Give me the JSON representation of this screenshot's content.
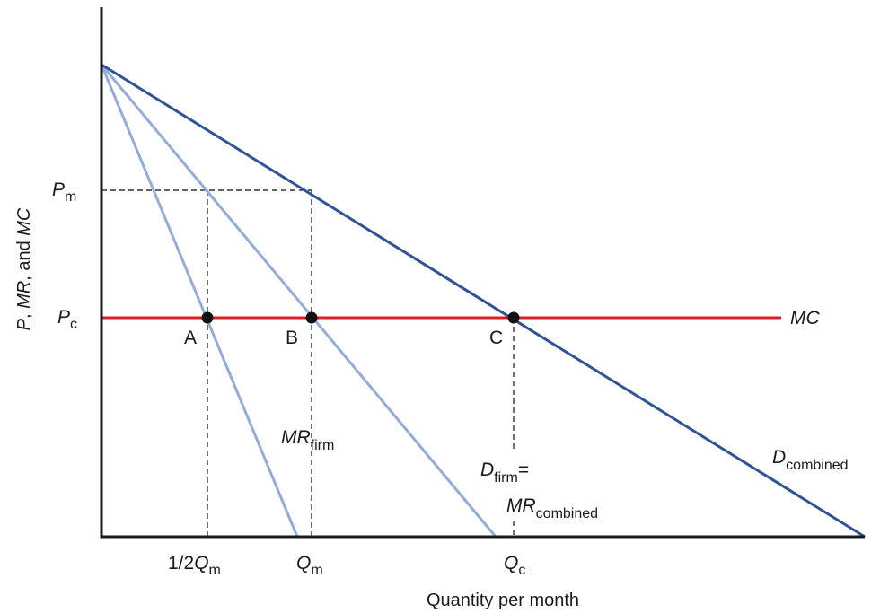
{
  "axes": {
    "x_title": "Quantity per month",
    "y_title_parts": [
      "P",
      ", ",
      "MR",
      ", and ",
      "MC"
    ]
  },
  "y_ticks": {
    "pm": {
      "main": "P",
      "sub": "m"
    },
    "pc": {
      "main": "P",
      "sub": "c"
    }
  },
  "x_ticks": {
    "half_qm": {
      "prefix": "1/2",
      "main": "Q",
      "sub": "m"
    },
    "qm": {
      "main": "Q",
      "sub": "m"
    },
    "qc": {
      "main": "Q",
      "sub": "c"
    }
  },
  "curves": {
    "mc": {
      "label": "MC"
    },
    "mr_firm": {
      "main": "MR",
      "sub": "firm"
    },
    "d_firm": {
      "main": "D",
      "sub": "firm",
      "suffix": "="
    },
    "mr_combined": {
      "main": "MR",
      "sub": "combined"
    },
    "d_combined": {
      "main": "D",
      "sub": "combined"
    }
  },
  "points": [
    {
      "id": "A",
      "label": "A"
    },
    {
      "id": "B",
      "label": "B"
    },
    {
      "id": "C",
      "label": "C"
    }
  ],
  "colors": {
    "axis": "#1a1a1a",
    "demand_combined": "#2e5497",
    "marginal_revenue": "#94acd6",
    "mc": "#d4202a",
    "guide": "#333333",
    "point": "#111111"
  }
}
